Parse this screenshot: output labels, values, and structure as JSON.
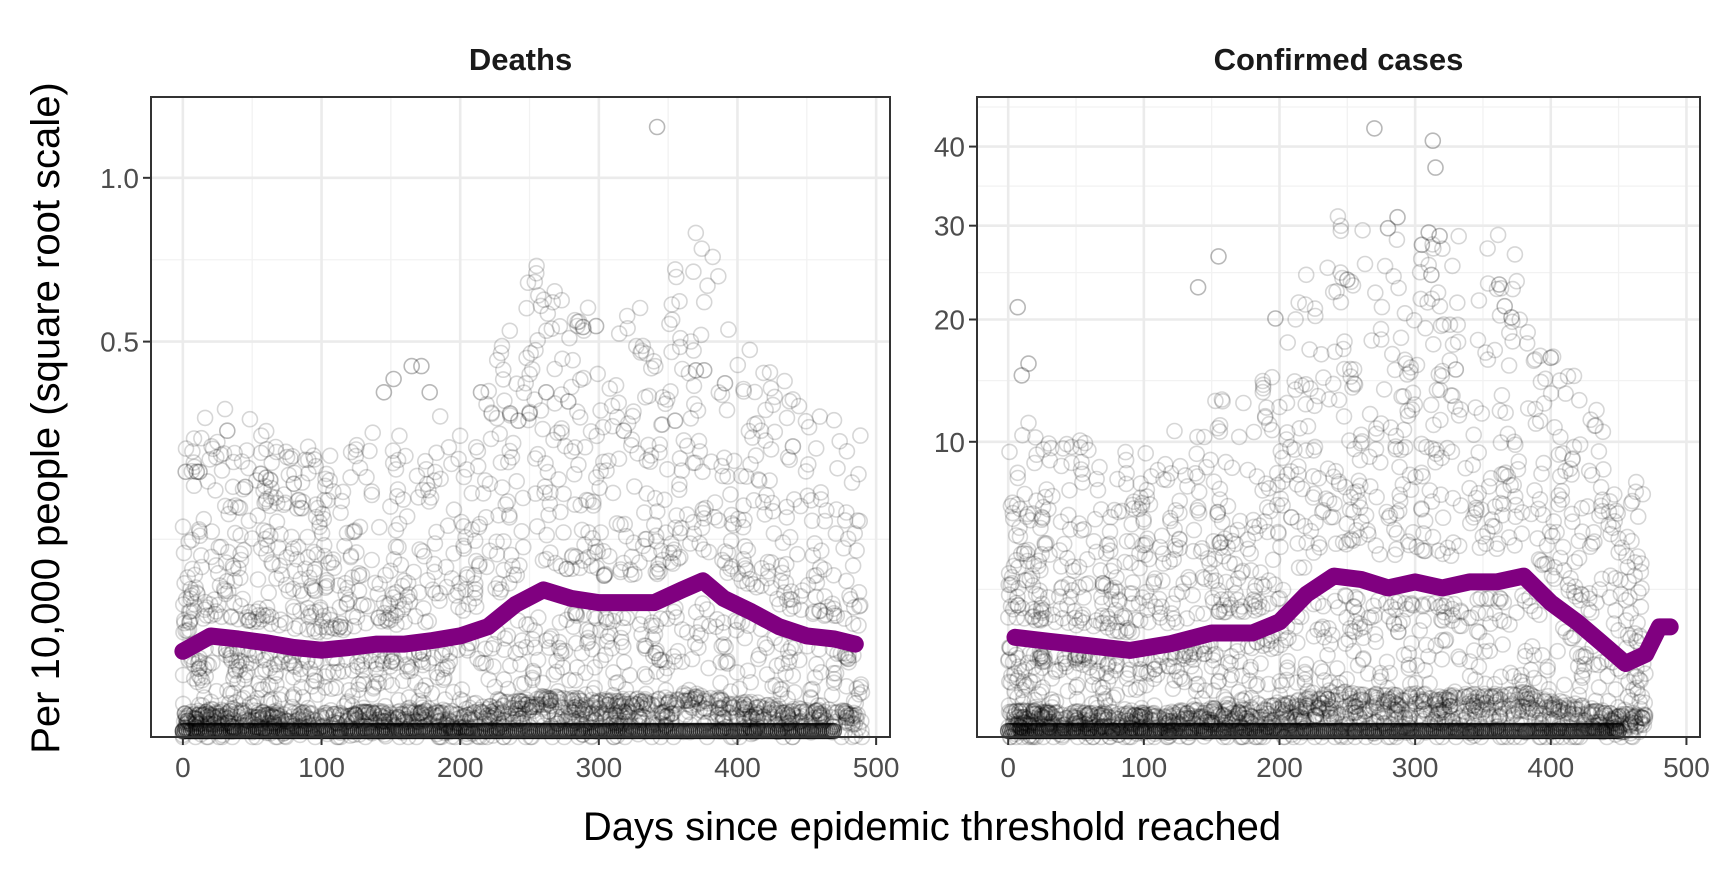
{
  "chart_data": {
    "type": "scatter",
    "ylabel": "Per 10,000 people (square root scale)",
    "xlabel": "Days since epidemic threshold reached",
    "y_scale": "sqrt",
    "grid": true,
    "legend": "none",
    "trend_color": "#800080",
    "point_color": "#000000",
    "panels": [
      {
        "title": "Deaths",
        "xlim": [
          -23,
          510
        ],
        "ylim": [
          0,
          1.31
        ],
        "x_ticks": [
          0,
          100,
          200,
          300,
          400,
          500
        ],
        "x_tick_labels": [
          "0",
          "100",
          "200",
          "300",
          "400",
          "500"
        ],
        "y_ticks": [
          0.5,
          1.0
        ],
        "y_tick_labels": [
          "0.5",
          "1.0"
        ],
        "trend": {
          "x": [
            0,
            20,
            40,
            60,
            80,
            100,
            120,
            140,
            160,
            180,
            200,
            220,
            240,
            260,
            280,
            300,
            320,
            340,
            360,
            375,
            390,
            410,
            430,
            450,
            470,
            485
          ],
          "y": [
            0.0235,
            0.0326,
            0.0307,
            0.0284,
            0.0256,
            0.0241,
            0.0256,
            0.0276,
            0.0276,
            0.0298,
            0.0327,
            0.0389,
            0.0562,
            0.0692,
            0.0614,
            0.0578,
            0.0578,
            0.0578,
            0.0692,
            0.078,
            0.0614,
            0.0501,
            0.0389,
            0.0327,
            0.0307,
            0.0276
          ]
        },
        "outliers": {
          "x": [
            342,
            298,
            165,
            172,
            152,
            145,
            178,
            215,
            262,
            278,
            370,
            376,
            391,
            32,
            2,
            10,
            12,
            45,
            60,
            80,
            250,
            242,
            236,
            318,
            355,
            440
          ],
          "y": [
            1.19,
            0.54,
            0.44,
            0.44,
            0.41,
            0.38,
            0.38,
            0.38,
            0.38,
            0.36,
            0.43,
            0.43,
            0.4,
            0.3,
            0.225,
            0.225,
            0.225,
            0.2,
            0.215,
            0.205,
            0.335,
            0.32,
            0.335,
            0.3,
            0.32,
            0.27
          ]
        },
        "floor": {
          "x_min": 0,
          "x_max": 470,
          "y": 0.0
        }
      },
      {
        "title": "Confirmed cases",
        "xlim": [
          -23,
          510
        ],
        "ylim": [
          0,
          47
        ],
        "x_ticks": [
          0,
          100,
          200,
          300,
          400,
          500
        ],
        "x_tick_labels": [
          "0",
          "100",
          "200",
          "300",
          "400",
          "500"
        ],
        "y_ticks": [
          10,
          20,
          30,
          40
        ],
        "y_tick_labels": [
          "10",
          "20",
          "30",
          "40"
        ],
        "trend": {
          "x": [
            5,
            30,
            60,
            90,
            120,
            150,
            180,
            200,
            220,
            240,
            260,
            280,
            300,
            320,
            340,
            360,
            380,
            400,
            420,
            440,
            455,
            470,
            480,
            488
          ],
          "y": [
            1.14,
            1.05,
            0.955,
            0.86,
            1.0,
            1.24,
            1.24,
            1.52,
            2.34,
            2.97,
            2.85,
            2.55,
            2.76,
            2.55,
            2.76,
            2.76,
            2.97,
            2.07,
            1.5,
            0.955,
            0.62,
            0.785,
            1.39,
            1.39
          ]
        },
        "outliers": {
          "x": [
            270,
            313,
            315,
            287,
            280,
            310,
            318,
            305,
            312,
            362,
            366,
            371,
            155,
            140,
            7,
            10,
            15,
            197,
            250,
            330,
            400
          ],
          "y": [
            42.5,
            40.8,
            37.2,
            31.0,
            29.7,
            29.2,
            28.8,
            27.8,
            24.5,
            23.5,
            21.3,
            20.2,
            26.5,
            23.2,
            21.2,
            15.0,
            16.0,
            20.1,
            24.0,
            15.5,
            16.5
          ]
        },
        "floor": {
          "x_min": 0,
          "x_max": 450,
          "y": 0.0
        }
      }
    ]
  }
}
